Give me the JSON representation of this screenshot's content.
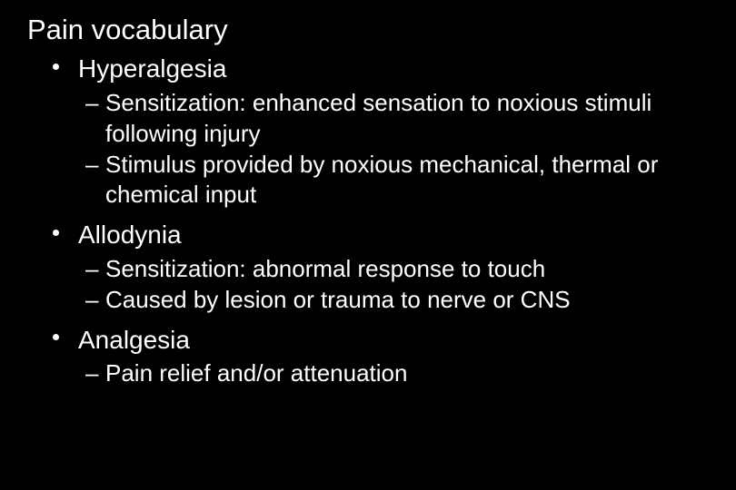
{
  "slide": {
    "background_color": "#000000",
    "text_color": "#ffffff",
    "title": "Pain vocabulary",
    "title_fontsize": 31,
    "body_fontsize_level1": 28,
    "body_fontsize_level2": 26,
    "font_family": "Arial",
    "bullets": [
      {
        "label": "Hyperalgesia",
        "children": [
          "Sensitization: enhanced sensation to noxious stimuli following injury",
          "Stimulus provided by noxious mechanical, thermal or chemical input"
        ]
      },
      {
        "label": "Allodynia",
        "children": [
          "Sensitization: abnormal response to touch",
          "Caused by lesion or trauma to nerve or CNS"
        ]
      },
      {
        "label": "Analgesia",
        "children": [
          "Pain relief and/or attenuation"
        ]
      }
    ]
  }
}
